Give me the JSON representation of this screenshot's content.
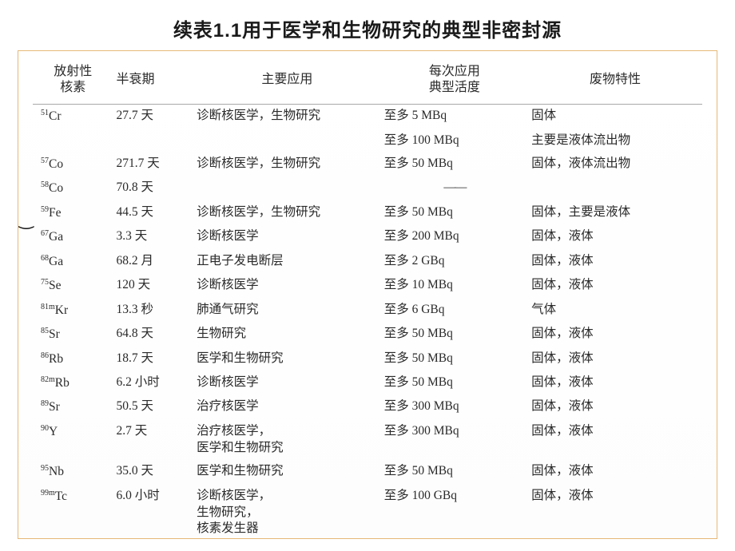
{
  "title": "续表1.1用于医学和生物研究的典型非密封源",
  "headers": {
    "nuclide": "放射性\n核素",
    "halflife": "半衰期",
    "application": "主要应用",
    "activity": "每次应用\n典型活度",
    "waste": "废物特性"
  },
  "colwidths": [
    "12%",
    "12%",
    "28%",
    "22%",
    "26%"
  ],
  "rows": [
    {
      "nuclide_sup": "51",
      "nuclide_sym": "Cr",
      "halflife": "27.7 天",
      "application": "诊断核医学，生物研究",
      "activity": "至多 5 MBq",
      "waste": "固体"
    },
    {
      "nuclide_sup": "",
      "nuclide_sym": "",
      "halflife": "",
      "application": "",
      "activity": "至多 100 MBq",
      "waste": "主要是液体流出物"
    },
    {
      "nuclide_sup": "57",
      "nuclide_sym": "Co",
      "halflife": "271.7 天",
      "application": "诊断核医学，生物研究",
      "activity": "至多 50 MBq",
      "waste": "固体，液体流出物"
    },
    {
      "nuclide_sup": "58",
      "nuclide_sym": "Co",
      "halflife": "70.8 天",
      "application": "",
      "activity": "—",
      "waste": "",
      "dash": true
    },
    {
      "nuclide_sup": "59",
      "nuclide_sym": "Fe",
      "halflife": "44.5 天",
      "application": "诊断核医学，生物研究",
      "activity": "至多 50 MBq",
      "waste": "固体，主要是液体"
    },
    {
      "nuclide_sup": "67",
      "nuclide_sym": "Ga",
      "halflife": "3.3 天",
      "application": "诊断核医学",
      "activity": "至多 200 MBq",
      "waste": "固体，液体"
    },
    {
      "nuclide_sup": "68",
      "nuclide_sym": "Ga",
      "halflife": "68.2 月",
      "application": "正电子发电断层",
      "activity": "至多 2 GBq",
      "waste": "固体，液体"
    },
    {
      "nuclide_sup": "75",
      "nuclide_sym": "Se",
      "halflife": "120 天",
      "application": "诊断核医学",
      "activity": "至多 10 MBq",
      "waste": "固体，液体"
    },
    {
      "nuclide_sup": "81m",
      "nuclide_sym": "Kr",
      "halflife": "13.3 秒",
      "application": "肺通气研究",
      "activity": "至多 6 GBq",
      "waste": "气体"
    },
    {
      "nuclide_sup": "85",
      "nuclide_sym": "Sr",
      "halflife": "64.8 天",
      "application": "生物研究",
      "activity": "至多 50 MBq",
      "waste": "固体，液体"
    },
    {
      "nuclide_sup": "86",
      "nuclide_sym": "Rb",
      "halflife": "18.7 天",
      "application": "医学和生物研究",
      "activity": "至多 50 MBq",
      "waste": "固体，液体"
    },
    {
      "nuclide_sup": "82m",
      "nuclide_sym": "Rb",
      "halflife": "6.2 小时",
      "application": "诊断核医学",
      "activity": "至多 50 MBq",
      "waste": "固体，液体"
    },
    {
      "nuclide_sup": "89",
      "nuclide_sym": "Sr",
      "halflife": "50.5 天",
      "application": "治疗核医学",
      "activity": "至多 300 MBq",
      "waste": "固体，液体"
    },
    {
      "nuclide_sup": "90",
      "nuclide_sym": "Y",
      "halflife": "2.7 天",
      "application": "治疗核医学，\n医学和生物研究",
      "activity": "至多 300 MBq",
      "waste": "固体，液体"
    },
    {
      "nuclide_sup": "95",
      "nuclide_sym": "Nb",
      "halflife": "35.0 天",
      "application": "医学和生物研究",
      "activity": "至多 50 MBq",
      "waste": "固体，液体"
    },
    {
      "nuclide_sup": "99m",
      "nuclide_sym": "Tc",
      "halflife": "6.0 小时",
      "application": "诊断核医学，\n生物研究，\n核素发生器",
      "activity": "至多 100 GBq",
      "waste": "固体，液体"
    }
  ],
  "colors": {
    "border": "#e6b878",
    "rule": "#a8a8a8",
    "text": "#2a2a2a",
    "bg": "#ffffff"
  },
  "font_sizes": {
    "title": 24,
    "header": 16,
    "body": 15.5
  }
}
